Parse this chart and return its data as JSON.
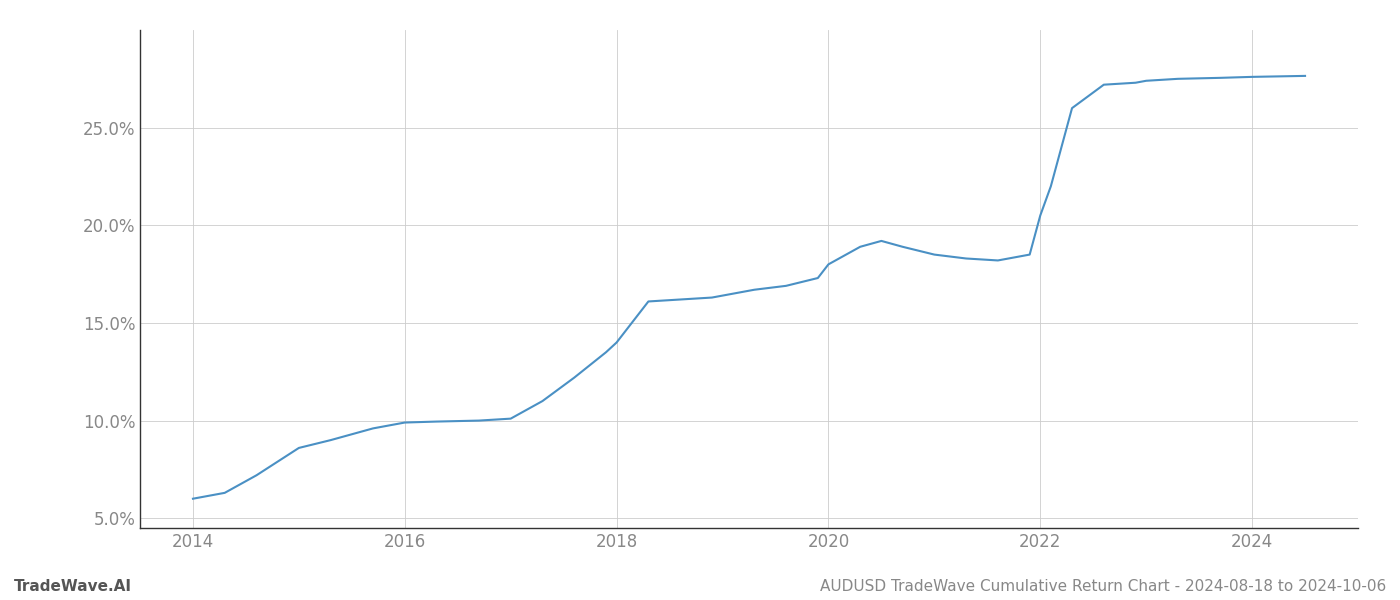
{
  "title": "AUDUSD TradeWave Cumulative Return Chart - 2024-08-18 to 2024-10-06",
  "watermark": "TradeWave.AI",
  "line_color": "#4a90c4",
  "background_color": "#ffffff",
  "grid_color": "#cccccc",
  "x_values": [
    2014.0,
    2014.3,
    2014.6,
    2015.0,
    2015.3,
    2015.7,
    2016.0,
    2016.3,
    2016.7,
    2017.0,
    2017.3,
    2017.6,
    2017.9,
    2018.0,
    2018.3,
    2018.6,
    2018.9,
    2019.0,
    2019.3,
    2019.6,
    2019.9,
    2020.0,
    2020.3,
    2020.5,
    2020.7,
    2021.0,
    2021.3,
    2021.6,
    2021.9,
    2022.0,
    2022.1,
    2022.3,
    2022.6,
    2022.9,
    2023.0,
    2023.3,
    2023.7,
    2024.0,
    2024.5
  ],
  "y_values": [
    6.0,
    6.3,
    7.2,
    8.6,
    9.0,
    9.6,
    9.9,
    9.95,
    10.0,
    10.1,
    11.0,
    12.2,
    13.5,
    14.0,
    16.1,
    16.2,
    16.3,
    16.4,
    16.7,
    16.9,
    17.3,
    18.0,
    18.9,
    19.2,
    18.9,
    18.5,
    18.3,
    18.2,
    18.5,
    20.5,
    22.0,
    26.0,
    27.2,
    27.3,
    27.4,
    27.5,
    27.55,
    27.6,
    27.65
  ],
  "xlim": [
    2013.5,
    2025.0
  ],
  "ylim": [
    4.5,
    30.0
  ],
  "yticks": [
    5.0,
    10.0,
    15.0,
    20.0,
    25.0
  ],
  "ytick_labels": [
    "5.0%",
    "10.0%",
    "15.0%",
    "20.0%",
    "25.0%"
  ],
  "xticks": [
    2014,
    2016,
    2018,
    2020,
    2022,
    2024
  ],
  "line_width": 1.5,
  "figsize": [
    14,
    6
  ],
  "dpi": 100,
  "title_fontsize": 11,
  "tick_fontsize": 12,
  "watermark_fontsize": 11
}
